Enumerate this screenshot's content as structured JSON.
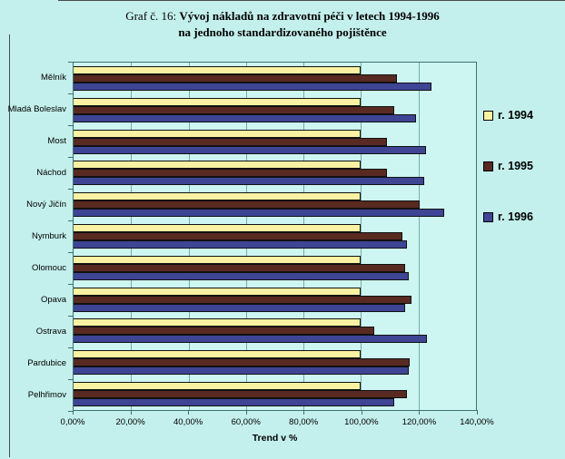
{
  "title": {
    "prefix": "Graf č. 16:",
    "line1": "Vývoj nákladů na zdravotní péči v letech 1994-1996",
    "line2": "na jednoho standardizovaného pojištěnce"
  },
  "chart_data": {
    "type": "bar",
    "orientation": "horizontal",
    "title": "Graf č. 16: Vývoj nákladů na zdravotní péči v letech 1994-1996 na jednoho standardizovaného pojištěnce",
    "xlabel": "Trend v %",
    "ylabel": "",
    "xlim": [
      0,
      140
    ],
    "x_ticks": [
      "0,00%",
      "20,00%",
      "40,00%",
      "60,00%",
      "80,00%",
      "100,00%",
      "120,00%",
      "140,00%"
    ],
    "grid": "vertical",
    "legend_position": "right",
    "categories": [
      "Mělník",
      "Mladá Boleslav",
      "Most",
      "Náchod",
      "Nový Jičín",
      "Nymburk",
      "Olomouc",
      "Opava",
      "Ostrava",
      "Pardubice",
      "Pelhřimov"
    ],
    "series": [
      {
        "name": "r. 1994",
        "color": "#f8f2a2",
        "values": [
          100,
          100,
          100,
          100,
          100,
          100,
          100,
          100,
          100,
          100,
          100
        ]
      },
      {
        "name": "r. 1995",
        "color": "#582a22",
        "values": [
          112.5,
          111.5,
          109,
          109,
          120.5,
          114.5,
          115.5,
          117.5,
          104.5,
          117,
          116
        ]
      },
      {
        "name": "r. 1996",
        "color": "#3e4594",
        "values": [
          124.5,
          119,
          122.5,
          122,
          129,
          116,
          116.5,
          115.5,
          123,
          116.5,
          111.5
        ]
      }
    ]
  },
  "colors": {
    "page_background": "#c3efec",
    "plot_background": "#cdf5f2",
    "series_1994": "#f8f2a2",
    "series_1995": "#582a22",
    "series_1996": "#3e4594"
  }
}
